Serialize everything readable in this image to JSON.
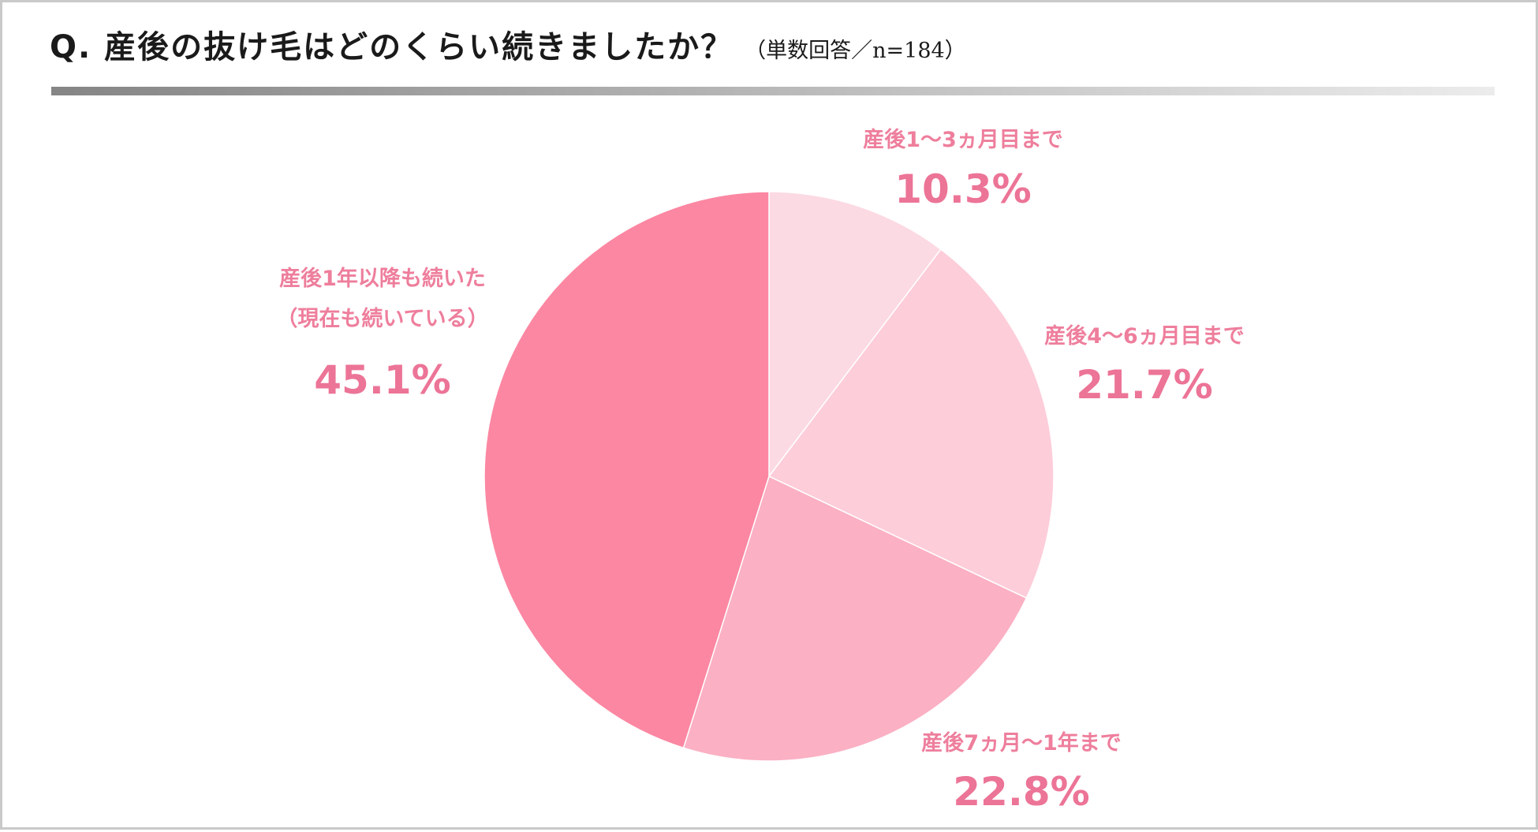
{
  "header": {
    "question": "Q. 産後の抜け毛はどのくらい続きましたか？",
    "note": "（単数回答／n=184）"
  },
  "chart_data": {
    "type": "pie",
    "title": "Q. 産後の抜け毛はどのくらい続きましたか？",
    "start_angle": "12 o'clock, clockwise",
    "slices": [
      {
        "label": "産後1〜3ヵ月目まで",
        "value": 10.3,
        "display": "10.3%",
        "color": "#fcdae3",
        "label_lines": [
          "産後1〜3ヵ月目まで"
        ]
      },
      {
        "label": "産後4〜6ヵ月目まで",
        "value": 21.7,
        "display": "21.7%",
        "color": "#fdcdda",
        "label_lines": [
          "産後4〜6ヵ月目まで"
        ]
      },
      {
        "label": "産後7ヵ月〜1年まで",
        "value": 22.8,
        "display": "22.8%",
        "color": "#fbb0c4",
        "label_lines": [
          "産後7ヵ月〜1年まで"
        ]
      },
      {
        "label": "産後1年以降も続いた（現在も続いている）",
        "value": 45.1,
        "display": "45.1%",
        "color": "#fc87a2",
        "label_lines": [
          "産後1年以降も続いた",
          "（現在も続いている）"
        ]
      }
    ]
  }
}
